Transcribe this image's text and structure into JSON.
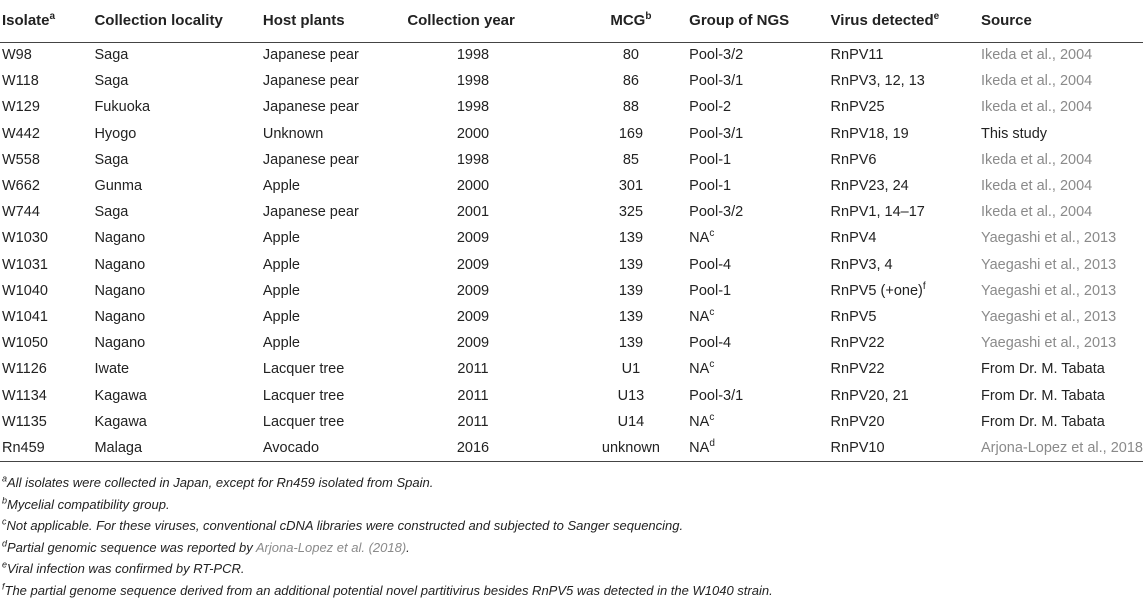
{
  "table": {
    "headers": [
      {
        "text": "Isolate",
        "sup": "a"
      },
      {
        "text": "Collection locality",
        "sup": ""
      },
      {
        "text": "Host plants",
        "sup": ""
      },
      {
        "text": "Collection year",
        "sup": ""
      },
      {
        "text": "MCG",
        "sup": "b"
      },
      {
        "text": "Group of NGS",
        "sup": ""
      },
      {
        "text": "Virus detected",
        "sup": "e"
      },
      {
        "text": "Source",
        "sup": ""
      }
    ],
    "rows": [
      {
        "isolate": "W98",
        "locality": "Saga",
        "host": "Japanese pear",
        "year": "1998",
        "mcg": "80",
        "ngs": "Pool-3/2",
        "ngs_sup": "",
        "virus": "RnPV11",
        "virus_sup": "",
        "source": "Ikeda et al., 2004",
        "source_cite": true
      },
      {
        "isolate": "W118",
        "locality": "Saga",
        "host": "Japanese pear",
        "year": "1998",
        "mcg": "86",
        "ngs": "Pool-3/1",
        "ngs_sup": "",
        "virus": "RnPV3, 12, 13",
        "virus_sup": "",
        "source": "Ikeda et al., 2004",
        "source_cite": true
      },
      {
        "isolate": "W129",
        "locality": "Fukuoka",
        "host": "Japanese pear",
        "year": "1998",
        "mcg": "88",
        "ngs": "Pool-2",
        "ngs_sup": "",
        "virus": "RnPV25",
        "virus_sup": "",
        "source": "Ikeda et al., 2004",
        "source_cite": true
      },
      {
        "isolate": "W442",
        "locality": "Hyogo",
        "host": "Unknown",
        "year": "2000",
        "mcg": "169",
        "ngs": "Pool-3/1",
        "ngs_sup": "",
        "virus": "RnPV18, 19",
        "virus_sup": "",
        "source": "This study",
        "source_cite": false
      },
      {
        "isolate": "W558",
        "locality": "Saga",
        "host": "Japanese pear",
        "year": "1998",
        "mcg": "85",
        "ngs": "Pool-1",
        "ngs_sup": "",
        "virus": "RnPV6",
        "virus_sup": "",
        "source": "Ikeda et al., 2004",
        "source_cite": true
      },
      {
        "isolate": "W662",
        "locality": "Gunma",
        "host": "Apple",
        "year": "2000",
        "mcg": "301",
        "ngs": "Pool-1",
        "ngs_sup": "",
        "virus": "RnPV23, 24",
        "virus_sup": "",
        "source": "Ikeda et al., 2004",
        "source_cite": true
      },
      {
        "isolate": "W744",
        "locality": "Saga",
        "host": "Japanese pear",
        "year": "2001",
        "mcg": "325",
        "ngs": "Pool-3/2",
        "ngs_sup": "",
        "virus": "RnPV1, 14–17",
        "virus_sup": "",
        "source": "Ikeda et al., 2004",
        "source_cite": true
      },
      {
        "isolate": "W1030",
        "locality": "Nagano",
        "host": "Apple",
        "year": "2009",
        "mcg": "139",
        "ngs": "NA",
        "ngs_sup": "c",
        "virus": "RnPV4",
        "virus_sup": "",
        "source": "Yaegashi et al., 2013",
        "source_cite": true
      },
      {
        "isolate": "W1031",
        "locality": "Nagano",
        "host": "Apple",
        "year": "2009",
        "mcg": "139",
        "ngs": "Pool-4",
        "ngs_sup": "",
        "virus": "RnPV3, 4",
        "virus_sup": "",
        "source": "Yaegashi et al., 2013",
        "source_cite": true
      },
      {
        "isolate": "W1040",
        "locality": "Nagano",
        "host": "Apple",
        "year": "2009",
        "mcg": "139",
        "ngs": "Pool-1",
        "ngs_sup": "",
        "virus": "RnPV5 (+one)",
        "virus_sup": "f",
        "source": "Yaegashi et al., 2013",
        "source_cite": true
      },
      {
        "isolate": "W1041",
        "locality": "Nagano",
        "host": "Apple",
        "year": "2009",
        "mcg": "139",
        "ngs": "NA",
        "ngs_sup": "c",
        "virus": "RnPV5",
        "virus_sup": "",
        "source": "Yaegashi et al., 2013",
        "source_cite": true
      },
      {
        "isolate": "W1050",
        "locality": "Nagano",
        "host": "Apple",
        "year": "2009",
        "mcg": "139",
        "ngs": "Pool-4",
        "ngs_sup": "",
        "virus": "RnPV22",
        "virus_sup": "",
        "source": "Yaegashi et al., 2013",
        "source_cite": true
      },
      {
        "isolate": "W1126",
        "locality": "Iwate",
        "host": "Lacquer tree",
        "year": "2011",
        "mcg": "U1",
        "ngs": "NA",
        "ngs_sup": "c",
        "virus": "RnPV22",
        "virus_sup": "",
        "source": "From Dr. M. Tabata",
        "source_cite": false
      },
      {
        "isolate": "W1134",
        "locality": "Kagawa",
        "host": "Lacquer tree",
        "year": "2011",
        "mcg": "U13",
        "ngs": "Pool-3/1",
        "ngs_sup": "",
        "virus": "RnPV20, 21",
        "virus_sup": "",
        "source": "From Dr. M. Tabata",
        "source_cite": false
      },
      {
        "isolate": "W1135",
        "locality": "Kagawa",
        "host": "Lacquer tree",
        "year": "2011",
        "mcg": "U14",
        "ngs": "NA",
        "ngs_sup": "c",
        "virus": "RnPV20",
        "virus_sup": "",
        "source": "From Dr. M. Tabata",
        "source_cite": false
      },
      {
        "isolate": "Rn459",
        "locality": "Malaga",
        "host": "Avocado",
        "year": "2016",
        "mcg": "unknown",
        "ngs": "NA",
        "ngs_sup": "d",
        "virus": "RnPV10",
        "virus_sup": "",
        "source": "Arjona-Lopez et al., 2018",
        "source_cite": true
      }
    ]
  },
  "footnotes": [
    {
      "mark": "a",
      "parts": [
        {
          "text": "All isolates were collected in Japan, except for Rn459 isolated from Spain.",
          "cite": false
        }
      ]
    },
    {
      "mark": "b",
      "parts": [
        {
          "text": "Mycelial compatibility group.",
          "cite": false
        }
      ]
    },
    {
      "mark": "c",
      "parts": [
        {
          "text": "Not applicable. For these viruses, conventional cDNA libraries were constructed and subjected to Sanger sequencing.",
          "cite": false
        }
      ]
    },
    {
      "mark": "d",
      "parts": [
        {
          "text": "Partial genomic sequence was reported by ",
          "cite": false
        },
        {
          "text": "Arjona-Lopez et al. (2018)",
          "cite": true
        },
        {
          "text": ".",
          "cite": false
        }
      ]
    },
    {
      "mark": "e",
      "parts": [
        {
          "text": "Viral infection was confirmed by RT-PCR.",
          "cite": false
        }
      ]
    },
    {
      "mark": "f",
      "parts": [
        {
          "text": "The partial genome sequence derived from an additional potential novel partitivirus besides RnPV5 was detected in the W1040 strain.",
          "cite": false
        }
      ]
    }
  ],
  "colors": {
    "text": "#222222",
    "citation": "#8a8a8a",
    "rule": "#444444"
  }
}
